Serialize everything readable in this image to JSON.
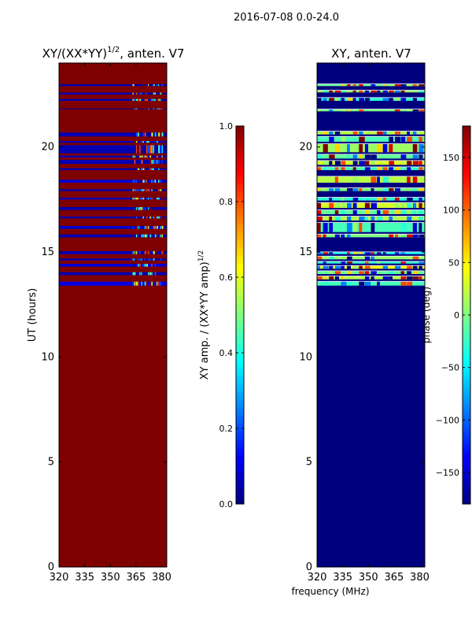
{
  "figure": {
    "suptitle": "2016-07-08 0.0-24.0"
  },
  "colors": {
    "jet": [
      "#00007f",
      "#0000ff",
      "#007fff",
      "#00ffff",
      "#7fff7f",
      "#ffff00",
      "#ff7f00",
      "#ff0000",
      "#7f0000"
    ],
    "axis": "#000000",
    "background": "#ffffff"
  },
  "chart_data": [
    {
      "type": "heatmap",
      "title": "XY/(XX*YY)^(1/2), anten. V7",
      "title_main": "XY/(XX*YY)",
      "title_exp": "1/2",
      "title_tail": ", anten. V7",
      "xlabel": "",
      "ylabel": "UT (hours)",
      "xlim": [
        320,
        383
      ],
      "ylim": [
        0,
        24
      ],
      "xticks": [
        320,
        335,
        350,
        365,
        380
      ],
      "yticks": [
        0,
        5,
        10,
        15,
        20
      ],
      "colorbar": {
        "label": "XY amp. / (XX*YY amp)^(1/2)",
        "label_main": "XY amp. / (XX*YY amp)",
        "label_exp": "1/2",
        "range": [
          0.0,
          1.0
        ],
        "ticks": [
          "0.0",
          "0.2",
          "0.4",
          "0.6",
          "0.8",
          "1.0"
        ]
      },
      "background_value": 1.0,
      "bands": [
        {
          "y0": 13.4,
          "y1": 13.6,
          "value": 0.1
        },
        {
          "y0": 13.9,
          "y1": 14.05,
          "value": 0.05
        },
        {
          "y0": 14.3,
          "y1": 14.45,
          "value": 0.08
        },
        {
          "y0": 14.6,
          "y1": 14.7,
          "value": 0.05
        },
        {
          "y0": 14.9,
          "y1": 15.05,
          "value": 0.06
        },
        {
          "y0": 15.7,
          "y1": 15.85,
          "value": 0.05
        },
        {
          "y0": 16.1,
          "y1": 16.25,
          "value": 0.08
        },
        {
          "y0": 16.6,
          "y1": 16.7,
          "value": 0.05
        },
        {
          "y0": 17.0,
          "y1": 17.15,
          "value": 0.05
        },
        {
          "y0": 17.5,
          "y1": 17.6,
          "value": 0.06
        },
        {
          "y0": 17.9,
          "y1": 18.0,
          "value": 0.05
        },
        {
          "y0": 18.3,
          "y1": 18.45,
          "value": 0.08
        },
        {
          "y0": 18.9,
          "y1": 19.0,
          "value": 0.05
        },
        {
          "y0": 19.2,
          "y1": 19.4,
          "value": 0.05
        },
        {
          "y0": 19.5,
          "y1": 19.6,
          "value": 0.06
        },
        {
          "y0": 19.7,
          "y1": 20.1,
          "value": 0.05
        },
        {
          "y0": 20.2,
          "y1": 20.3,
          "value": 0.06
        },
        {
          "y0": 20.5,
          "y1": 20.7,
          "value": 0.05
        },
        {
          "y0": 21.8,
          "y1": 21.85,
          "value": 0.05
        },
        {
          "y0": 22.2,
          "y1": 22.3,
          "value": 0.06
        },
        {
          "y0": 22.5,
          "y1": 22.6,
          "value": 0.05
        },
        {
          "y0": 22.9,
          "y1": 23.0,
          "value": 0.05
        }
      ],
      "noise": {
        "x0": 363,
        "x1": 381,
        "y0": 13.4,
        "y1": 23.0,
        "values": [
          0.2,
          0.35,
          0.45,
          0.6,
          0.8,
          1.0
        ]
      }
    },
    {
      "type": "heatmap",
      "title": "XY, anten. V7",
      "xlabel": "frequency (MHz)",
      "ylabel": "",
      "xlim": [
        320,
        383
      ],
      "ylim": [
        0,
        24
      ],
      "xticks": [
        320,
        335,
        350,
        365,
        380
      ],
      "yticks": [
        0,
        5,
        10,
        15,
        20
      ],
      "colorbar": {
        "label": "phase (deg)",
        "range": [
          -180,
          180
        ],
        "ticks": [
          "−150",
          "−100",
          "−50",
          "0",
          "50",
          "100",
          "150"
        ],
        "tick_values": [
          -150,
          -100,
          -50,
          0,
          50,
          100,
          150
        ]
      },
      "background_value": -180,
      "bands": [
        {
          "y0": 13.4,
          "y1": 13.6,
          "value": -20
        },
        {
          "y0": 13.7,
          "y1": 13.85,
          "value": 20
        },
        {
          "y0": 13.95,
          "y1": 14.1,
          "value": -10
        },
        {
          "y0": 14.2,
          "y1": 14.35,
          "value": 40
        },
        {
          "y0": 14.45,
          "y1": 14.55,
          "value": -30
        },
        {
          "y0": 14.65,
          "y1": 14.8,
          "value": 10
        },
        {
          "y0": 14.9,
          "y1": 15.0,
          "value": -40
        },
        {
          "y0": 15.7,
          "y1": 15.85,
          "value": 0
        },
        {
          "y0": 15.95,
          "y1": 16.4,
          "value": -20
        },
        {
          "y0": 16.5,
          "y1": 16.7,
          "value": 20
        },
        {
          "y0": 16.8,
          "y1": 17.0,
          "value": -10
        },
        {
          "y0": 17.1,
          "y1": 17.35,
          "value": 30
        },
        {
          "y0": 17.45,
          "y1": 17.6,
          "value": -30
        },
        {
          "y0": 17.9,
          "y1": 18.05,
          "value": 0
        },
        {
          "y0": 18.3,
          "y1": 18.6,
          "value": 20
        },
        {
          "y0": 18.9,
          "y1": 19.05,
          "value": -20
        },
        {
          "y0": 19.15,
          "y1": 19.35,
          "value": 30
        },
        {
          "y0": 19.45,
          "y1": 19.65,
          "value": -10
        },
        {
          "y0": 19.75,
          "y1": 20.15,
          "value": 10
        },
        {
          "y0": 20.25,
          "y1": 20.5,
          "value": -20
        },
        {
          "y0": 20.6,
          "y1": 20.75,
          "value": 20
        },
        {
          "y0": 21.7,
          "y1": 21.8,
          "value": 0
        },
        {
          "y0": 22.2,
          "y1": 22.35,
          "value": -30
        },
        {
          "y0": 22.6,
          "y1": 22.7,
          "value": 10
        },
        {
          "y0": 22.9,
          "y1": 23.0,
          "value": -10
        }
      ],
      "noise": {
        "x0": 320,
        "x1": 383,
        "y0": 13.4,
        "y1": 23.0,
        "values": [
          -180,
          -150,
          -90,
          -30,
          10,
          60,
          110,
          150,
          180
        ]
      }
    }
  ]
}
